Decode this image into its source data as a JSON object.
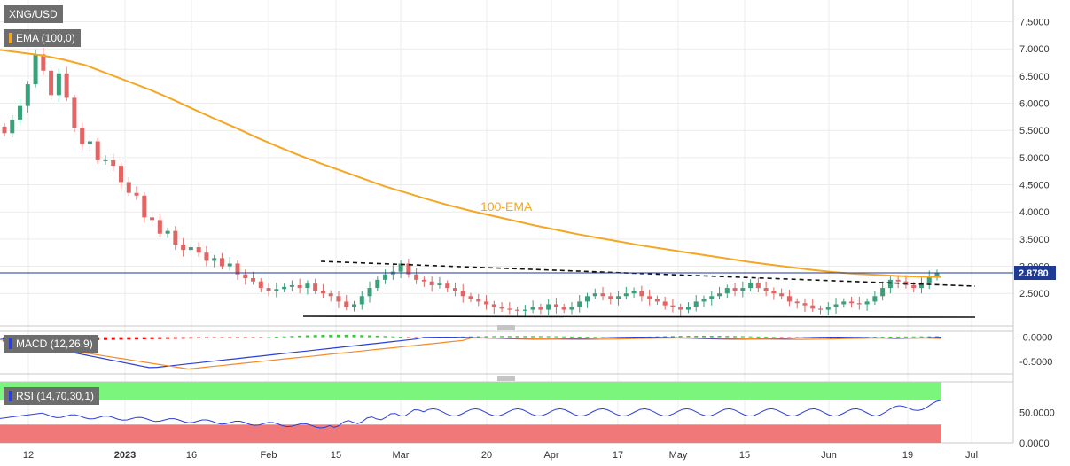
{
  "chart_data": [
    {
      "type": "candlestick",
      "title": "XNG/USD",
      "indicator_label": "EMA (100,0)",
      "annotation": "100-EMA",
      "last_price": "2.8780",
      "ylim": [
        1.9,
        7.9
      ],
      "y_ticks": [
        "7.5000",
        "7.0000",
        "6.5000",
        "6.0000",
        "5.5000",
        "5.0000",
        "4.5000",
        "4.0000",
        "3.5000",
        "3.0000",
        "2.5000"
      ],
      "y_tick_values": [
        7.5,
        7.0,
        6.5,
        6.0,
        5.5,
        5.0,
        4.5,
        4.0,
        3.5,
        3.0,
        2.5
      ],
      "x_ticks": [
        "12",
        "2023",
        "16",
        "Feb",
        "15",
        "Mar",
        "20",
        "Apr",
        "17",
        "May",
        "15",
        "Jun",
        "19",
        "Jul"
      ],
      "colors": {
        "up": "#3aa07a",
        "down": "#e06666",
        "ema": "#f5a623",
        "price_line": "#1f3a93"
      },
      "candles_close": [
        5.45,
        5.7,
        5.95,
        6.35,
        6.9,
        6.6,
        6.15,
        6.55,
        6.1,
        5.55,
        5.25,
        5.3,
        4.95,
        4.95,
        4.85,
        4.55,
        4.35,
        4.3,
        3.9,
        3.85,
        3.6,
        3.65,
        3.4,
        3.3,
        3.35,
        3.25,
        3.1,
        3.15,
        3.0,
        3.05,
        2.85,
        2.78,
        2.72,
        2.6,
        2.55,
        2.58,
        2.62,
        2.65,
        2.6,
        2.68,
        2.55,
        2.5,
        2.45,
        2.35,
        2.25,
        2.3,
        2.45,
        2.6,
        2.75,
        2.85,
        2.9,
        3.05,
        2.85,
        2.75,
        2.72,
        2.65,
        2.68,
        2.6,
        2.55,
        2.45,
        2.4,
        2.35,
        2.3,
        2.25,
        2.22,
        2.2,
        2.18,
        2.2,
        2.25,
        2.2,
        2.3,
        2.25,
        2.2,
        2.25,
        2.35,
        2.45,
        2.5,
        2.45,
        2.4,
        2.45,
        2.5,
        2.55,
        2.45,
        2.4,
        2.35,
        2.28,
        2.25,
        2.2,
        2.25,
        2.35,
        2.4,
        2.45,
        2.5,
        2.6,
        2.55,
        2.6,
        2.7,
        2.6,
        2.55,
        2.5,
        2.45,
        2.35,
        2.32,
        2.28,
        2.22,
        2.2,
        2.25,
        2.3,
        2.35,
        2.32,
        2.3,
        2.35,
        2.45,
        2.6,
        2.75,
        2.72,
        2.65,
        2.6,
        2.7,
        2.8,
        2.878
      ],
      "ema_100_approx": [
        6.98,
        6.93,
        6.88,
        6.8,
        6.7,
        6.55,
        6.4,
        6.25,
        6.08,
        5.9,
        5.72,
        5.55,
        5.37,
        5.2,
        5.04,
        4.89,
        4.75,
        4.61,
        4.47,
        4.35,
        4.23,
        4.12,
        4.02,
        3.93,
        3.84,
        3.75,
        3.67,
        3.59,
        3.52,
        3.45,
        3.38,
        3.32,
        3.26,
        3.2,
        3.14,
        3.08,
        3.03,
        2.98,
        2.93,
        2.89,
        2.86,
        2.84,
        2.82,
        2.81,
        2.8
      ]
    },
    {
      "type": "bar+line",
      "title": "MACD (12,26,9)",
      "y_ticks": [
        "-0.0000",
        "-0.5000"
      ],
      "y_tick_values": [
        0.0,
        -0.5
      ],
      "ylim": [
        -0.75,
        0.12
      ],
      "colors": {
        "hist_up": "#33cc33",
        "hist_down": "#ff0000",
        "macd": "#2a3fd6",
        "signal": "#f58a2a"
      }
    },
    {
      "type": "line",
      "title": "RSI (14,70,30,1)",
      "y_ticks": [
        "50.0000",
        "0.0000"
      ],
      "y_tick_values": [
        50,
        0
      ],
      "ylim": [
        0,
        100
      ],
      "overbought": 70,
      "oversold": 30,
      "colors": {
        "line": "#2a3fd6",
        "overbought_zone": "#7cf57c",
        "oversold_zone": "#f07878"
      }
    }
  ]
}
